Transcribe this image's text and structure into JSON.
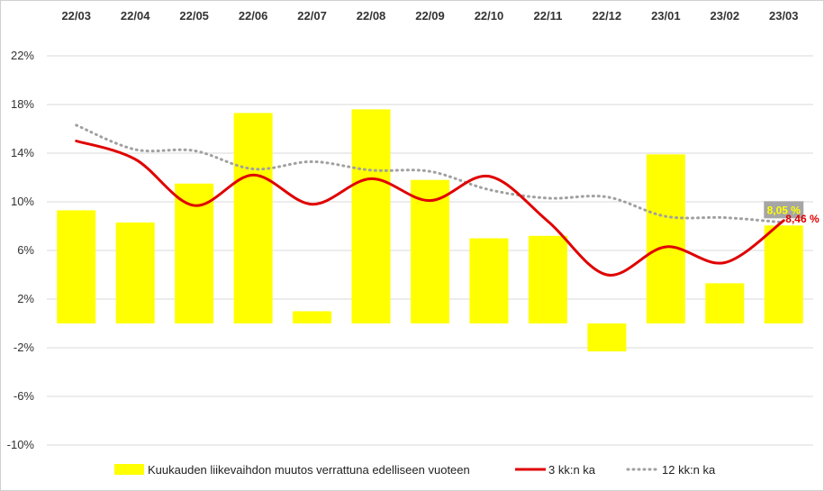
{
  "chart_data": {
    "type": "bar",
    "categories": [
      "22/03",
      "22/04",
      "22/05",
      "22/06",
      "22/07",
      "22/08",
      "22/09",
      "22/10",
      "22/11",
      "22/12",
      "23/01",
      "23/02",
      "23/03"
    ],
    "ylim": [
      -10,
      22
    ],
    "yticks": [
      22,
      18,
      14,
      10,
      6,
      2,
      -2,
      -6,
      -10
    ],
    "ytick_labels": [
      "22%",
      "18%",
      "14%",
      "10%",
      "6%",
      "2%",
      "-2%",
      "-6%",
      "-10%"
    ],
    "x_axis_position": "top",
    "grid": true,
    "legend_position": "bottom",
    "series": [
      {
        "name": "Kuukauden liikevaihdon muutos verrattuna edelliseen vuoteen",
        "type": "bar",
        "color": "#ffff00",
        "values": [
          9.3,
          8.3,
          11.5,
          17.3,
          1.0,
          17.6,
          11.8,
          7.0,
          7.2,
          -2.3,
          13.9,
          3.3,
          8.05
        ]
      },
      {
        "name": "3 kk:n ka",
        "type": "line",
        "style": "solid",
        "color": "#e00000",
        "values": [
          15.0,
          13.5,
          9.7,
          12.2,
          9.8,
          11.9,
          10.1,
          12.1,
          8.4,
          4.0,
          6.3,
          5.0,
          8.46
        ]
      },
      {
        "name": "12 kk:n ka",
        "type": "line",
        "style": "dotted",
        "color": "#a0a0a0",
        "values": [
          16.3,
          14.3,
          14.2,
          12.7,
          13.3,
          12.6,
          12.5,
          11.0,
          10.3,
          10.4,
          8.8,
          8.7,
          8.3
        ]
      }
    ],
    "data_labels": [
      {
        "series": 0,
        "index": 12,
        "text": "8,05 %",
        "color": "#ffff00",
        "background": "#a6a6a6"
      },
      {
        "series": 1,
        "index": 12,
        "text": "8,46 %",
        "color": "#e00000"
      }
    ]
  }
}
